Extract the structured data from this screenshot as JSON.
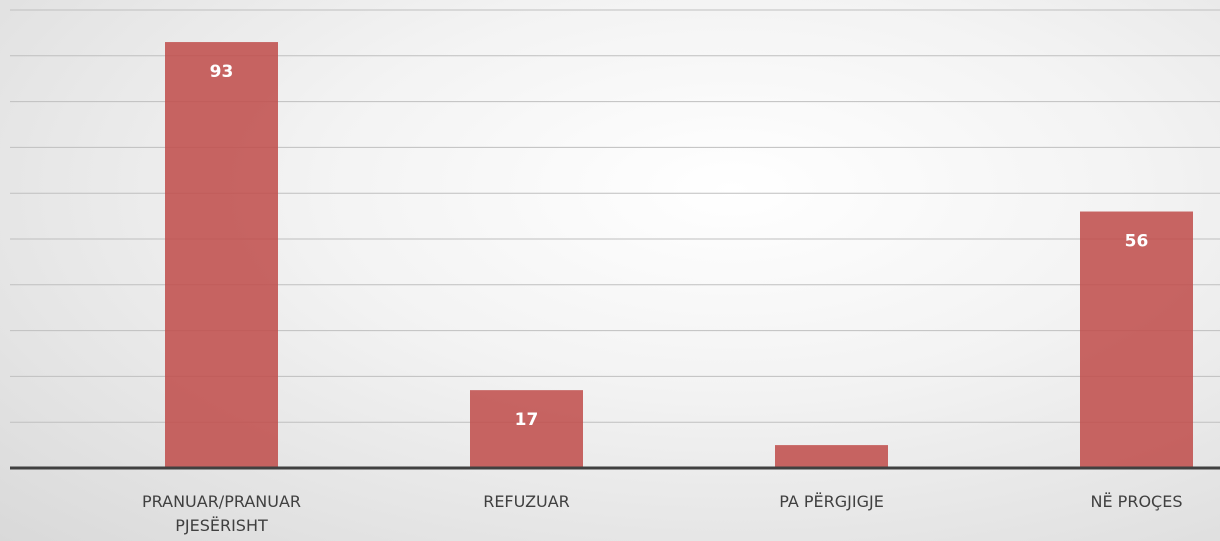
{
  "chart_data": {
    "type": "bar",
    "categories": [
      "PRANUAR/PRANUAR PJESËRISHT",
      "REFUZUAR",
      "PA PËRGJIGJE",
      "NË PROÇES"
    ],
    "values": [
      93,
      17,
      5,
      56
    ],
    "color": "#c0504d",
    "ylim": [
      0,
      100
    ],
    "yticks": [
      0,
      10,
      20,
      30,
      40,
      50,
      60,
      70,
      80,
      90,
      100
    ],
    "grid": true
  }
}
